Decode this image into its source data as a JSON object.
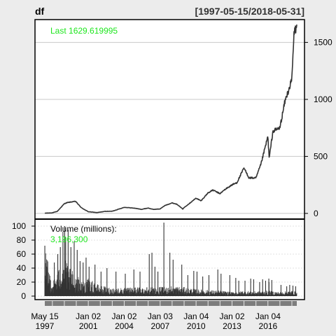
{
  "header": {
    "left_title": "df",
    "right_title": "[1997-05-15/2018-05-31]"
  },
  "main_panel": {
    "last_label": "Last 1629.619995"
  },
  "volume_panel": {
    "title": "Volume (millions):",
    "value": "3,196,300"
  },
  "colors": {
    "background": "#ececec",
    "panel": "#ffffff",
    "series": "#333333",
    "highlight": "#1ee61e",
    "grid": "#c8c8c8"
  },
  "chart_data": [
    {
      "type": "line",
      "series": [
        {
          "values_by_year": [
            [
              "1997-05-15",
              1.96
            ],
            [
              "1998-01-01",
              5
            ],
            [
              "1998-06-01",
              18
            ],
            [
              "1998-12-31",
              85
            ],
            [
              "1999-04-01",
              95
            ],
            [
              "1999-12-10",
              106
            ],
            [
              "2000-06-01",
              50
            ],
            [
              "2000-12-29",
              15
            ],
            [
              "2001-09-28",
              7
            ],
            [
              "2002-06-01",
              18
            ],
            [
              "2002-12-31",
              19
            ],
            [
              "2003-12-31",
              53
            ],
            [
              "2004-06-01",
              50
            ],
            [
              "2004-12-31",
              44
            ],
            [
              "2005-06-01",
              35
            ],
            [
              "2005-12-30",
              47
            ],
            [
              "2006-06-01",
              35
            ],
            [
              "2006-12-29",
              39
            ],
            [
              "2007-06-01",
              70
            ],
            [
              "2007-12-31",
              92
            ],
            [
              "2008-06-01",
              80
            ],
            [
              "2008-11-20",
              38
            ],
            [
              "2008-12-31",
              51
            ],
            [
              "2009-06-01",
              85
            ],
            [
              "2009-12-31",
              134
            ],
            [
              "2010-06-01",
              110
            ],
            [
              "2010-12-31",
              180
            ],
            [
              "2011-06-01",
              205
            ],
            [
              "2011-12-30",
              173
            ],
            [
              "2012-06-01",
              210
            ],
            [
              "2012-12-31",
              250
            ],
            [
              "2013-06-01",
              270
            ],
            [
              "2013-12-31",
              398
            ],
            [
              "2014-06-01",
              312
            ],
            [
              "2014-12-31",
              310
            ],
            [
              "2015-06-01",
              430
            ],
            [
              "2015-12-31",
              675
            ],
            [
              "2016-02-09",
              482
            ],
            [
              "2016-06-01",
              720
            ],
            [
              "2016-12-30",
              750
            ],
            [
              "2017-06-01",
              980
            ],
            [
              "2017-12-29",
              1169
            ],
            [
              "2018-03-12",
              1598
            ],
            [
              "2018-05-31",
              1629.62
            ]
          ]
        }
      ],
      "y_ticks": [
        "0",
        "500",
        "1000",
        "1500"
      ],
      "ylim": [
        -50,
        1700
      ],
      "grid": true
    },
    {
      "type": "bar",
      "x_range": [
        "1997-05-15",
        "2018-05-31"
      ],
      "series": [
        {
          "volume_envelope": [
            [
              "1997-05-15",
              70
            ],
            [
              "1998-01-01",
              20
            ],
            [
              "1998-06-01",
              35
            ],
            [
              "1999-01-01",
              55
            ],
            [
              "1999-06-01",
              40
            ],
            [
              "2000-01-01",
              32
            ],
            [
              "2000-06-01",
              22
            ],
            [
              "2001-01-01",
              25
            ],
            [
              "2002-01-01",
              15
            ],
            [
              "2003-01-01",
              12
            ],
            [
              "2004-01-01",
              12
            ],
            [
              "2005-01-01",
              13
            ],
            [
              "2006-01-01",
              14
            ],
            [
              "2007-01-01",
              13
            ],
            [
              "2008-01-01",
              15
            ],
            [
              "2009-01-01",
              13
            ],
            [
              "2010-01-01",
              10
            ],
            [
              "2011-01-01",
              9
            ],
            [
              "2012-01-01",
              8
            ],
            [
              "2013-01-01",
              6
            ],
            [
              "2014-01-01",
              8
            ],
            [
              "2015-01-01",
              7
            ],
            [
              "2016-01-01",
              8
            ],
            [
              "2017-01-01",
              6
            ],
            [
              "2018-01-01",
              8
            ],
            [
              "2018-05-31",
              6
            ]
          ],
          "volume_spikes": [
            [
              "1997-05-16",
              72
            ],
            [
              "1998-03-01",
              48
            ],
            [
              "1998-06-15",
              60
            ],
            [
              "1998-09-01",
              70
            ],
            [
              "1998-11-20",
              92
            ],
            [
              "1999-01-12",
              100
            ],
            [
              "1999-02-10",
              84
            ],
            [
              "1999-04-27",
              95
            ],
            [
              "1999-07-20",
              70
            ],
            [
              "1999-10-28",
              78
            ],
            [
              "2000-01-28",
              66
            ],
            [
              "2000-04-25",
              50
            ],
            [
              "2000-07-27",
              48
            ],
            [
              "2000-10-25",
              55
            ],
            [
              "2001-01-25",
              42
            ],
            [
              "2001-07-24",
              45
            ],
            [
              "2002-01-24",
              35
            ],
            [
              "2002-07-24",
              40
            ],
            [
              "2003-04-25",
              35
            ],
            [
              "2004-02-03",
              32
            ],
            [
              "2004-10-22",
              38
            ],
            [
              "2005-04-27",
              35
            ],
            [
              "2006-02-03",
              60
            ],
            [
              "2006-04-26",
              62
            ],
            [
              "2006-07-26",
              42
            ],
            [
              "2006-10-25",
              35
            ],
            [
              "2007-04-25",
              105
            ],
            [
              "2007-10-24",
              62
            ],
            [
              "2008-01-31",
              52
            ],
            [
              "2008-10-22",
              45
            ],
            [
              "2009-04-24",
              30
            ],
            [
              "2009-10-23",
              36
            ],
            [
              "2010-01-29",
              35
            ],
            [
              "2010-07-23",
              28
            ],
            [
              "2011-01-28",
              30
            ],
            [
              "2011-10-26",
              38
            ],
            [
              "2012-02-01",
              32
            ],
            [
              "2012-10-26",
              30
            ],
            [
              "2013-04-26",
              26
            ],
            [
              "2013-07-26",
              22
            ],
            [
              "2014-02-01",
              22
            ],
            [
              "2014-07-25",
              25
            ],
            [
              "2014-10-24",
              24
            ],
            [
              "2015-04-24",
              20
            ],
            [
              "2015-07-24",
              24
            ],
            [
              "2015-10-23",
              22
            ],
            [
              "2016-01-29",
              25
            ],
            [
              "2016-02-05",
              20
            ],
            [
              "2016-04-29",
              23
            ],
            [
              "2017-02-03",
              16
            ],
            [
              "2017-07-28",
              14
            ],
            [
              "2017-10-27",
              16
            ],
            [
              "2018-02-02",
              15
            ],
            [
              "2018-04-27",
              14
            ]
          ]
        }
      ],
      "y_ticks": [
        "0",
        "20",
        "40",
        "60",
        "80",
        "100"
      ],
      "ylim": [
        -5,
        110
      ],
      "grid": true
    }
  ],
  "x_axis": {
    "ticks": [
      {
        "line1": "May 15",
        "line2": "1997"
      },
      {
        "line1": "Jan 02",
        "line2": "2001"
      },
      {
        "line1": "Jan 02",
        "line2": "2004"
      },
      {
        "line1": "Jan 03",
        "line2": "2007"
      },
      {
        "line1": "Jan 04",
        "line2": "2010"
      },
      {
        "line1": "Jan 02",
        "line2": "2013"
      },
      {
        "line1": "Jan 04",
        "line2": "2016"
      }
    ],
    "tick_dates": [
      "1997-05-15",
      "2001-01-02",
      "2004-01-02",
      "2007-01-03",
      "2010-01-04",
      "2013-01-02",
      "2016-01-04"
    ]
  }
}
